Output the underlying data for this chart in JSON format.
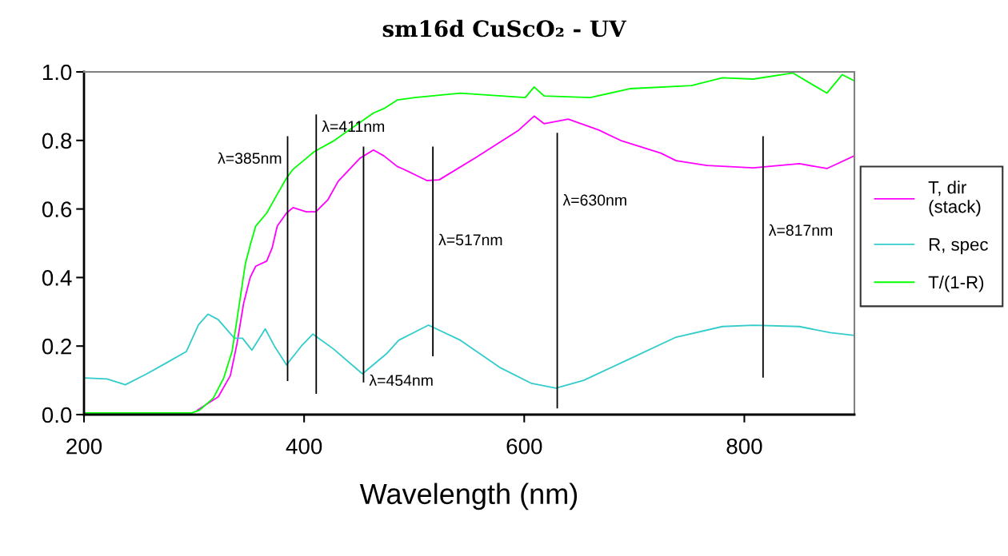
{
  "chart_data": {
    "type": "line",
    "title": "sm16d CuScO₂ - UV",
    "xlabel": "Wavelength (nm)",
    "xlim": [
      200,
      900
    ],
    "xticks": [
      200,
      400,
      600,
      800
    ],
    "ylim": [
      0,
      1
    ],
    "yticks": [
      {
        "value": 0,
        "label": "0.0"
      },
      {
        "value": 0.2,
        "label": "0.2"
      },
      {
        "value": 0.4,
        "label": "0.4"
      },
      {
        "value": 0.6,
        "label": "0.6"
      },
      {
        "value": 0.8,
        "label": "0.8"
      },
      {
        "value": 1,
        "label": "1.0"
      }
    ],
    "grid": false,
    "legend": "right",
    "marker": "none",
    "line_style": "solid",
    "series": [
      {
        "name": "T, dir (stack)",
        "color": "#ff00ff",
        "x": [
          303,
          322,
          333,
          339,
          345,
          351,
          356,
          366,
          371,
          375.6,
          384,
          390,
          402,
          410.7,
          421.6,
          431,
          450.7,
          463,
          472.5,
          484.6,
          489,
          511.6,
          522.7,
          556,
          595,
          609,
          618,
          640,
          668,
          687.6,
          724,
          738,
          766,
          808,
          850,
          875,
          900
        ],
        "values": [
          0.013,
          0.052,
          0.114,
          0.207,
          0.324,
          0.4,
          0.433,
          0.448,
          0.487,
          0.55,
          0.588,
          0.604,
          0.592,
          0.592,
          0.627,
          0.681,
          0.748,
          0.772,
          0.755,
          0.724,
          0.718,
          0.683,
          0.685,
          0.75,
          0.83,
          0.871,
          0.849,
          0.862,
          0.83,
          0.8,
          0.763,
          0.741,
          0.727,
          0.72,
          0.732,
          0.718,
          0.755
        ]
      },
      {
        "name": "R, spec",
        "color": "#33cccc",
        "x": [
          201,
          221,
          237.6,
          257,
          276,
          293,
          304,
          312.6,
          322,
          336.6,
          344,
          352.6,
          364.7,
          373,
          384,
          397.5,
          408,
          426.5,
          453,
          474.7,
          486,
          513,
          542,
          578.7,
          606.7,
          628.8,
          654,
          696,
          738,
          780,
          808,
          850,
          878,
          900
        ],
        "values": [
          0.107,
          0.104,
          0.087,
          0.119,
          0.153,
          0.184,
          0.262,
          0.293,
          0.277,
          0.223,
          0.223,
          0.188,
          0.25,
          0.2,
          0.145,
          0.2,
          0.235,
          0.192,
          0.119,
          0.177,
          0.217,
          0.261,
          0.217,
          0.136,
          0.091,
          0.077,
          0.1,
          0.163,
          0.226,
          0.257,
          0.261,
          0.257,
          0.239,
          0.231
        ]
      },
      {
        "name": "T/(1-R)",
        "color": "#00ff00",
        "x": [
          200,
          298,
          305,
          317.5,
          327,
          334.5,
          339,
          343,
          346.6,
          351,
          356,
          366,
          375.6,
          384,
          390,
          402,
          409,
          426.5,
          438.5,
          463,
          472.5,
          484.6,
          500.5,
          542,
          601,
          609,
          618,
          660,
          696,
          752,
          780,
          808,
          844,
          875,
          889,
          900
        ],
        "values": [
          0.005,
          0.005,
          0.013,
          0.048,
          0.107,
          0.184,
          0.277,
          0.363,
          0.44,
          0.494,
          0.55,
          0.588,
          0.643,
          0.69,
          0.716,
          0.748,
          0.767,
          0.798,
          0.825,
          0.88,
          0.893,
          0.918,
          0.925,
          0.938,
          0.925,
          0.956,
          0.93,
          0.925,
          0.951,
          0.96,
          0.983,
          0.979,
          0.997,
          0.938,
          0.992,
          0.974
        ]
      },
      {
        "color": "#000000",
        "x": [
          385,
          385
        ],
        "values": [
          0.1,
          0.81
        ]
      },
      {
        "color": "#000000",
        "x": [
          411,
          411
        ],
        "values": [
          0.063,
          0.874
        ]
      },
      {
        "color": "#000000",
        "x": [
          454,
          454
        ],
        "values": [
          0.096,
          0.78
        ]
      },
      {
        "color": "#000000",
        "x": [
          517,
          517
        ],
        "values": [
          0.172,
          0.78
        ]
      },
      {
        "color": "#000000",
        "x": [
          630,
          630
        ],
        "values": [
          0.02,
          0.82
        ]
      },
      {
        "color": "#000000",
        "x": [
          817,
          817
        ],
        "values": [
          0.11,
          0.81
        ]
      }
    ],
    "annotations": [
      {
        "text": "λ=385nm",
        "x": 385,
        "y": 0.744
      },
      {
        "text": "λ=411nm",
        "x": 411,
        "y": 0.837
      },
      {
        "text": "λ=454nm",
        "x": 454,
        "y": 0.096
      },
      {
        "text": "λ=517nm",
        "x": 517,
        "y": 0.506
      },
      {
        "text": "λ=630nm",
        "x": 630,
        "y": 0.622
      },
      {
        "text": "λ=817nm",
        "x": 817,
        "y": 0.534
      }
    ]
  }
}
